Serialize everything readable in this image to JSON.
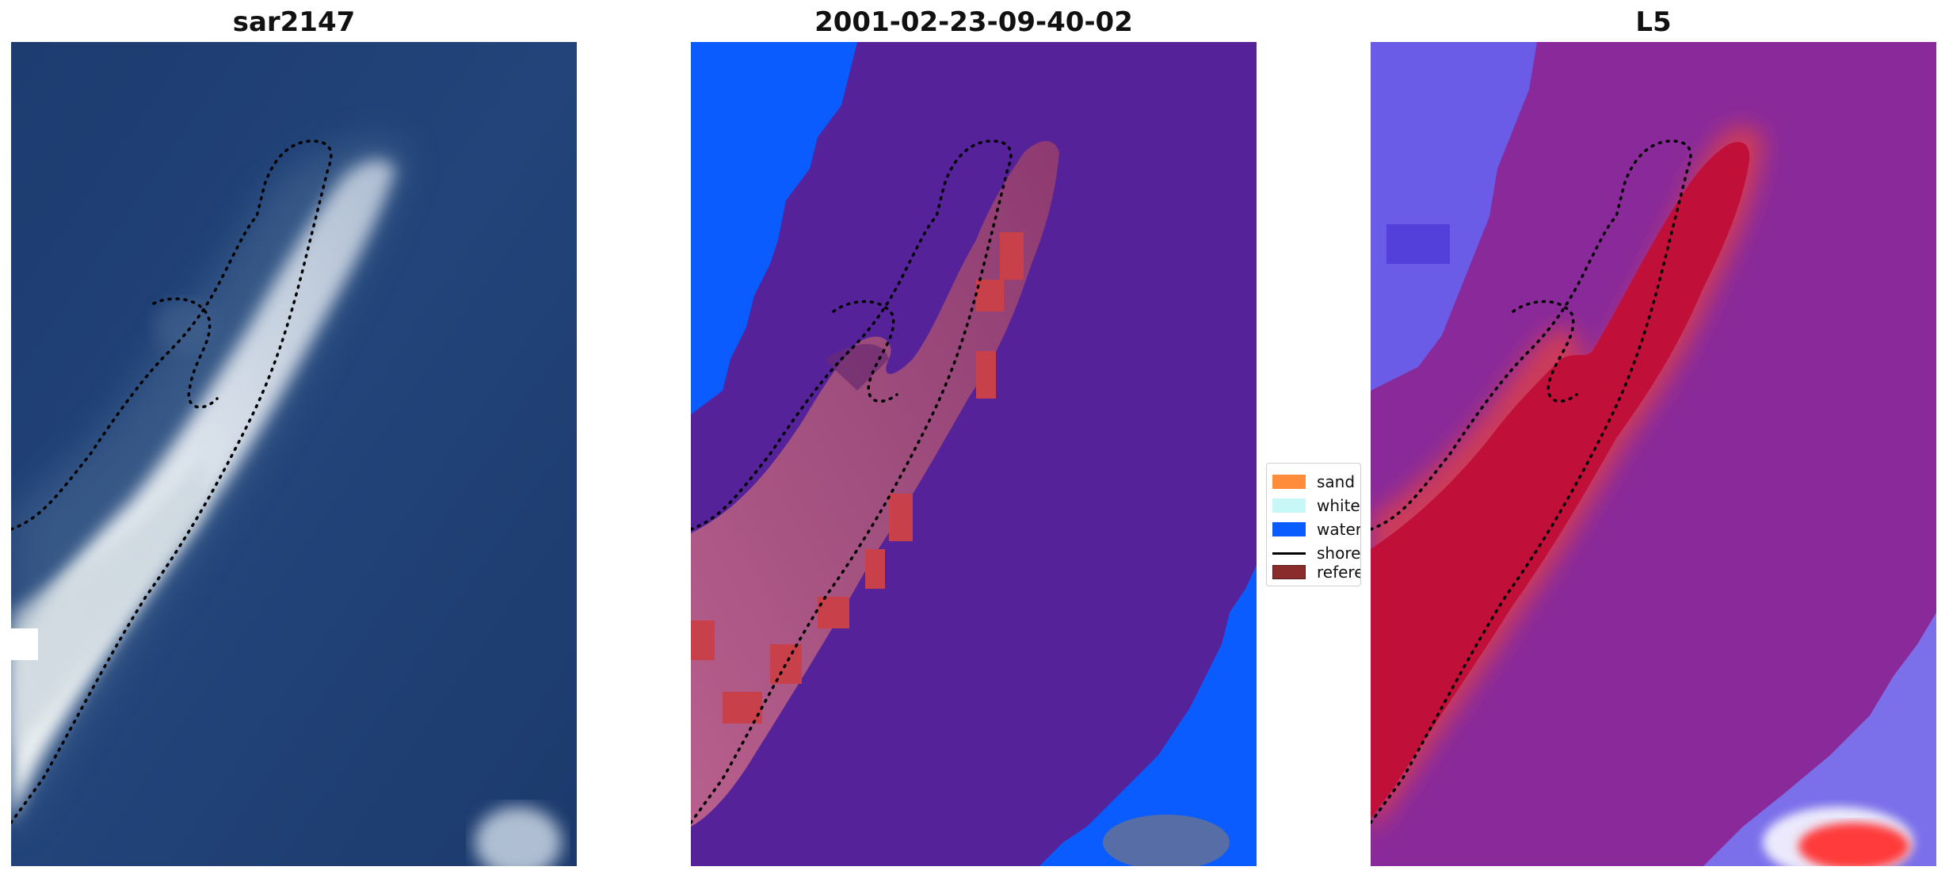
{
  "panels": {
    "rgb": {
      "title": "sar2147"
    },
    "classified": {
      "title": "2001-02-23-09-40-02"
    },
    "index": {
      "title": "L5"
    }
  },
  "legend": {
    "items": [
      {
        "label": "sand",
        "color": "#ff8c3a"
      },
      {
        "label": "whitewater",
        "color": "#c8f7f7"
      },
      {
        "label": "water",
        "color": "#0a5cff"
      },
      {
        "label": "shoreline",
        "color": "#000000"
      },
      {
        "label": "reference",
        "color": "#8b2c2c"
      }
    ]
  },
  "colors": {
    "water_rgb": "#1f3e72",
    "class_background": "#55229a",
    "index_background": "#8a2a9a",
    "index_sand": "#c0103a"
  }
}
